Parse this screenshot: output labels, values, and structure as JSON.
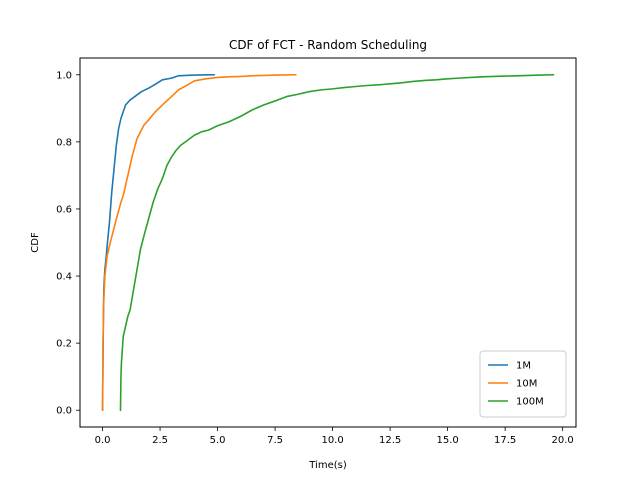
{
  "chart_data": {
    "type": "line",
    "title": "CDF of FCT - Random Scheduling",
    "xlabel": "Time(s)",
    "ylabel": "CDF",
    "xlim": [
      -0.98,
      20.58
    ],
    "ylim": [
      -0.05,
      1.05
    ],
    "xticks": [
      0.0,
      2.5,
      5.0,
      7.5,
      10.0,
      12.5,
      15.0,
      17.5,
      20.0
    ],
    "xtick_labels": [
      "0.0",
      "2.5",
      "5.0",
      "7.5",
      "10.0",
      "12.5",
      "15.0",
      "17.5",
      "20.0"
    ],
    "yticks": [
      0.0,
      0.2,
      0.4,
      0.6,
      0.8,
      1.0
    ],
    "ytick_labels": [
      "0.0",
      "0.2",
      "0.4",
      "0.6",
      "0.8",
      "1.0"
    ],
    "grid": false,
    "legend_position": "lower right",
    "series": [
      {
        "name": "1M",
        "color": "#1f77b4",
        "x": [
          0.0,
          0.02,
          0.04,
          0.06,
          0.1,
          0.15,
          0.2,
          0.3,
          0.4,
          0.5,
          0.6,
          0.7,
          0.8,
          0.9,
          1.0,
          1.2,
          1.4,
          1.7,
          2.0,
          2.3,
          2.6,
          3.0,
          3.3,
          3.6,
          4.0,
          4.4,
          4.85
        ],
        "y": [
          0.0,
          0.15,
          0.3,
          0.37,
          0.42,
          0.45,
          0.49,
          0.56,
          0.65,
          0.72,
          0.79,
          0.84,
          0.87,
          0.89,
          0.91,
          0.925,
          0.935,
          0.95,
          0.96,
          0.972,
          0.985,
          0.99,
          0.997,
          0.998,
          0.999,
          0.9995,
          1.0
        ]
      },
      {
        "name": "10M",
        "color": "#ff7f0e",
        "x": [
          0.0,
          0.02,
          0.05,
          0.1,
          0.15,
          0.2,
          0.3,
          0.45,
          0.6,
          0.8,
          0.9,
          1.1,
          1.3,
          1.5,
          1.8,
          2.0,
          2.3,
          2.6,
          3.0,
          3.3,
          3.7,
          4.0,
          4.5,
          5.0,
          5.5,
          6.0,
          6.5,
          7.0,
          7.5,
          8.0,
          8.4
        ],
        "y": [
          0.0,
          0.2,
          0.32,
          0.4,
          0.43,
          0.46,
          0.49,
          0.53,
          0.57,
          0.62,
          0.64,
          0.7,
          0.76,
          0.81,
          0.85,
          0.865,
          0.89,
          0.91,
          0.935,
          0.955,
          0.97,
          0.982,
          0.988,
          0.992,
          0.994,
          0.995,
          0.997,
          0.998,
          0.999,
          0.9995,
          1.0
        ]
      },
      {
        "name": "100M",
        "color": "#2ca02c",
        "x": [
          0.78,
          0.8,
          0.82,
          0.85,
          0.9,
          1.0,
          1.1,
          1.2,
          1.35,
          1.5,
          1.65,
          1.8,
          2.0,
          2.2,
          2.4,
          2.6,
          2.8,
          3.0,
          3.2,
          3.4,
          3.6,
          3.8,
          4.0,
          4.3,
          4.6,
          5.0,
          5.5,
          6.0,
          6.5,
          7.0,
          7.5,
          8.0,
          8.5,
          9.0,
          9.5,
          10.0,
          10.5,
          11.0,
          11.5,
          12.0,
          12.5,
          13.0,
          13.5,
          14.0,
          14.5,
          15.0,
          15.5,
          16.0,
          16.5,
          17.0,
          17.5,
          18.0,
          18.5,
          19.0,
          19.6
        ],
        "y": [
          0.0,
          0.1,
          0.14,
          0.17,
          0.22,
          0.25,
          0.28,
          0.3,
          0.36,
          0.42,
          0.48,
          0.52,
          0.57,
          0.62,
          0.66,
          0.69,
          0.73,
          0.755,
          0.775,
          0.79,
          0.8,
          0.81,
          0.82,
          0.83,
          0.835,
          0.848,
          0.86,
          0.876,
          0.895,
          0.91,
          0.922,
          0.935,
          0.942,
          0.95,
          0.955,
          0.958,
          0.962,
          0.965,
          0.968,
          0.97,
          0.973,
          0.976,
          0.98,
          0.983,
          0.985,
          0.988,
          0.99,
          0.992,
          0.994,
          0.995,
          0.996,
          0.997,
          0.998,
          0.999,
          1.0
        ]
      }
    ]
  }
}
